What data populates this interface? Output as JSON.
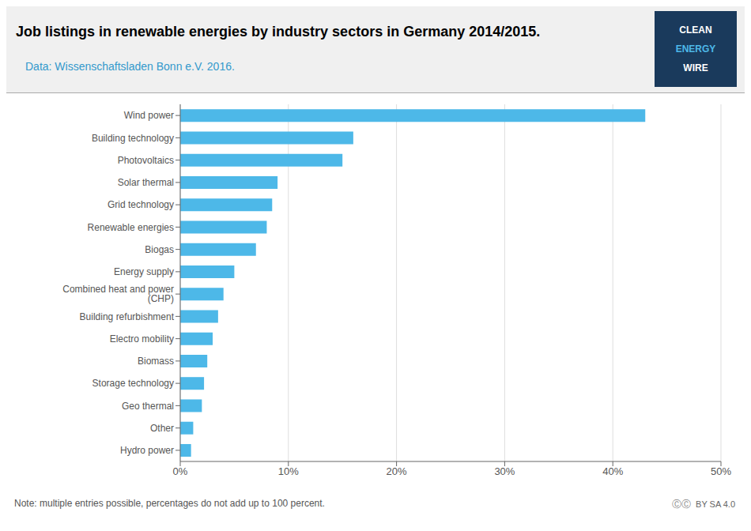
{
  "chart_data": {
    "type": "bar",
    "orientation": "horizontal",
    "title": "Job listings in renewable energies by industry sectors in Germany 2014/2015.",
    "subtitle": "Data: Wissenschaftsladen Bonn e.V. 2016.",
    "annotations": [
      "Note: multiple entries possible, percentages do not add up to 100 percent.",
      "CLEAN",
      "ENERGY",
      "WIRE",
      "ⒸⒸ",
      "BY SA 4.0"
    ],
    "categories": [
      "Hydro power",
      "Other",
      "Geo thermal",
      "Storage technology",
      "Biomass",
      "Electro mobility",
      "Building refurbishment",
      "Combined heat and power (CHP)",
      "Energy supply",
      "Biogas",
      "Renewable energies",
      "Grid technology",
      "Solar thermal",
      "Photovoltaics",
      "Building technology",
      "Wind power"
    ],
    "values": [
      1.0,
      1.2,
      2.0,
      2.2,
      2.5,
      3.0,
      3.5,
      4.0,
      5.0,
      7.0,
      8.0,
      8.5,
      9.0,
      15.0,
      16.0,
      43.0
    ],
    "color": "#4db8e8",
    "xlim": [
      0,
      50
    ],
    "xticks": [
      {
        "value": 0,
        "label": "0%"
      },
      {
        "value": 10,
        "label": "10%"
      },
      {
        "value": 20,
        "label": "20%"
      },
      {
        "value": 30,
        "label": "30%"
      },
      {
        "value": 40,
        "label": "40%"
      },
      {
        "value": 50,
        "label": "50%"
      }
    ],
    "grid": true
  }
}
